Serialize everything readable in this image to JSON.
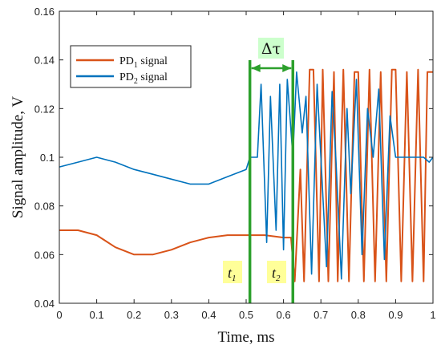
{
  "chart_data": {
    "type": "line",
    "title": "",
    "xlabel": "Time, ms",
    "ylabel": "Signal amplitude, V",
    "xlim": [
      0,
      1
    ],
    "ylim": [
      0.04,
      0.16
    ],
    "xticks": [
      0,
      0.1,
      0.2,
      0.3,
      0.4,
      0.5,
      0.6,
      0.7,
      0.8,
      0.9,
      1
    ],
    "xtick_labels": [
      "0",
      "0.1",
      "0.2",
      "0.3",
      "0.4",
      "0.5",
      "0.6",
      "0.7",
      "0.8",
      "0.9",
      "1"
    ],
    "yticks": [
      0.04,
      0.06,
      0.08,
      0.1,
      0.12,
      0.14,
      0.16
    ],
    "ytick_labels": [
      "0.04",
      "0.06",
      "0.08",
      "0.1",
      "0.12",
      "0.14",
      "0.16"
    ],
    "grid": false,
    "legend_position": "top-left",
    "series": [
      {
        "name": "PD",
        "subscript": "1",
        "suffix": " signal",
        "color": "#d95319",
        "x": [
          0,
          0.05,
          0.1,
          0.15,
          0.2,
          0.25,
          0.3,
          0.35,
          0.4,
          0.45,
          0.5,
          0.55,
          0.6,
          0.62,
          0.63,
          0.645,
          0.655,
          0.67,
          0.68,
          0.695,
          0.705,
          0.72,
          0.735,
          0.745,
          0.76,
          0.775,
          0.79,
          0.8,
          0.815,
          0.83,
          0.845,
          0.86,
          0.875,
          0.89,
          0.9,
          0.915,
          0.93,
          0.945,
          0.96,
          0.975,
          0.985,
          1
        ],
        "y": [
          0.07,
          0.07,
          0.068,
          0.063,
          0.06,
          0.06,
          0.062,
          0.065,
          0.067,
          0.068,
          0.068,
          0.068,
          0.067,
          0.067,
          0.049,
          0.095,
          0.049,
          0.136,
          0.136,
          0.049,
          0.136,
          0.049,
          0.135,
          0.049,
          0.136,
          0.049,
          0.135,
          0.135,
          0.049,
          0.136,
          0.049,
          0.135,
          0.049,
          0.136,
          0.136,
          0.049,
          0.135,
          0.049,
          0.136,
          0.049,
          0.135,
          0.135
        ]
      },
      {
        "name": "PD",
        "subscript": "2",
        "suffix": " signal",
        "color": "#0072bd",
        "x": [
          0,
          0.05,
          0.1,
          0.15,
          0.2,
          0.25,
          0.3,
          0.35,
          0.4,
          0.45,
          0.5,
          0.51,
          0.53,
          0.54,
          0.555,
          0.565,
          0.58,
          0.59,
          0.6,
          0.61,
          0.625,
          0.635,
          0.65,
          0.66,
          0.675,
          0.69,
          0.7,
          0.715,
          0.73,
          0.74,
          0.755,
          0.77,
          0.78,
          0.795,
          0.81,
          0.825,
          0.84,
          0.855,
          0.87,
          0.885,
          0.9,
          0.915,
          0.93,
          0.945,
          0.96,
          0.975,
          0.99,
          1
        ],
        "y": [
          0.096,
          0.098,
          0.1,
          0.098,
          0.095,
          0.093,
          0.091,
          0.089,
          0.089,
          0.092,
          0.095,
          0.1,
          0.1,
          0.13,
          0.065,
          0.125,
          0.07,
          0.13,
          0.062,
          0.132,
          0.1,
          0.135,
          0.11,
          0.125,
          0.052,
          0.13,
          0.1,
          0.055,
          0.127,
          0.1,
          0.05,
          0.12,
          0.085,
          0.132,
          0.06,
          0.12,
          0.1,
          0.128,
          0.058,
          0.117,
          0.1,
          0.1,
          0.1,
          0.1,
          0.1,
          0.1,
          0.098,
          0.1
        ]
      }
    ],
    "annotations": {
      "t1_main": "t",
      "t1_sub": "1",
      "t2_main": "t",
      "t2_sub": "2",
      "dtau": "Δτ",
      "t1_x": 0.51,
      "t2_x": 0.625
    },
    "colors": {
      "marker_lines": "#2ca02c",
      "label_bg": "#ffff99",
      "dtau_bg": "#ccffcc"
    }
  }
}
